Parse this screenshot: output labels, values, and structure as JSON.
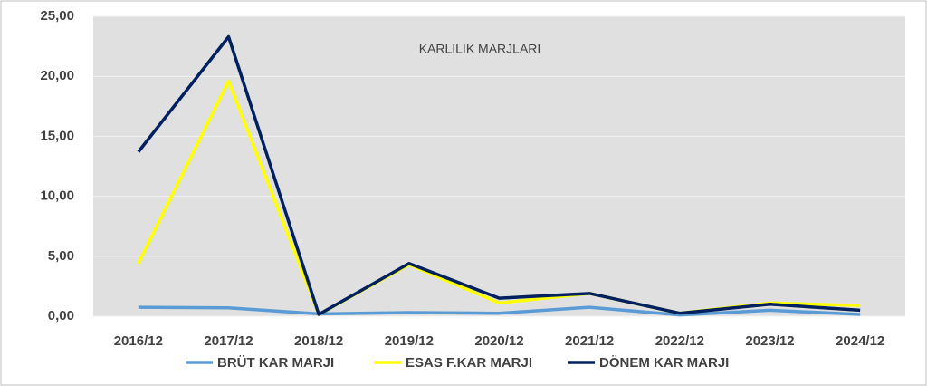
{
  "chart_data": {
    "type": "line",
    "title": "KARLILIK MARJLARI",
    "categories": [
      "2016/12",
      "2017/12",
      "2018/12",
      "2019/12",
      "2020/12",
      "2021/12",
      "2022/12",
      "2023/12",
      "2024/12"
    ],
    "series": [
      {
        "name": "BRÜT KAR MARJI",
        "color": "#5b9bd5",
        "values": [
          0.75,
          0.7,
          0.2,
          0.3,
          0.25,
          0.75,
          0.1,
          0.5,
          0.15
        ]
      },
      {
        "name": "ESAS F.KAR MARJI",
        "color": "#ffff00",
        "values": [
          4.4,
          19.6,
          0.15,
          4.3,
          1.1,
          1.9,
          0.25,
          1.1,
          0.9
        ]
      },
      {
        "name": "DÖNEM KAR MARJI",
        "color": "#002060",
        "values": [
          13.7,
          23.3,
          0.15,
          4.4,
          1.5,
          1.9,
          0.25,
          1.0,
          0.5
        ]
      }
    ],
    "ylim": [
      0,
      25
    ],
    "yticks": [
      {
        "value": 0,
        "label": "0,00"
      },
      {
        "value": 5,
        "label": "5,00"
      },
      {
        "value": 10,
        "label": "10,00"
      },
      {
        "value": 15,
        "label": "15,00"
      },
      {
        "value": 20,
        "label": "20,00"
      },
      {
        "value": 25,
        "label": "25,00"
      }
    ],
    "grid": true,
    "legend": "bottom"
  }
}
